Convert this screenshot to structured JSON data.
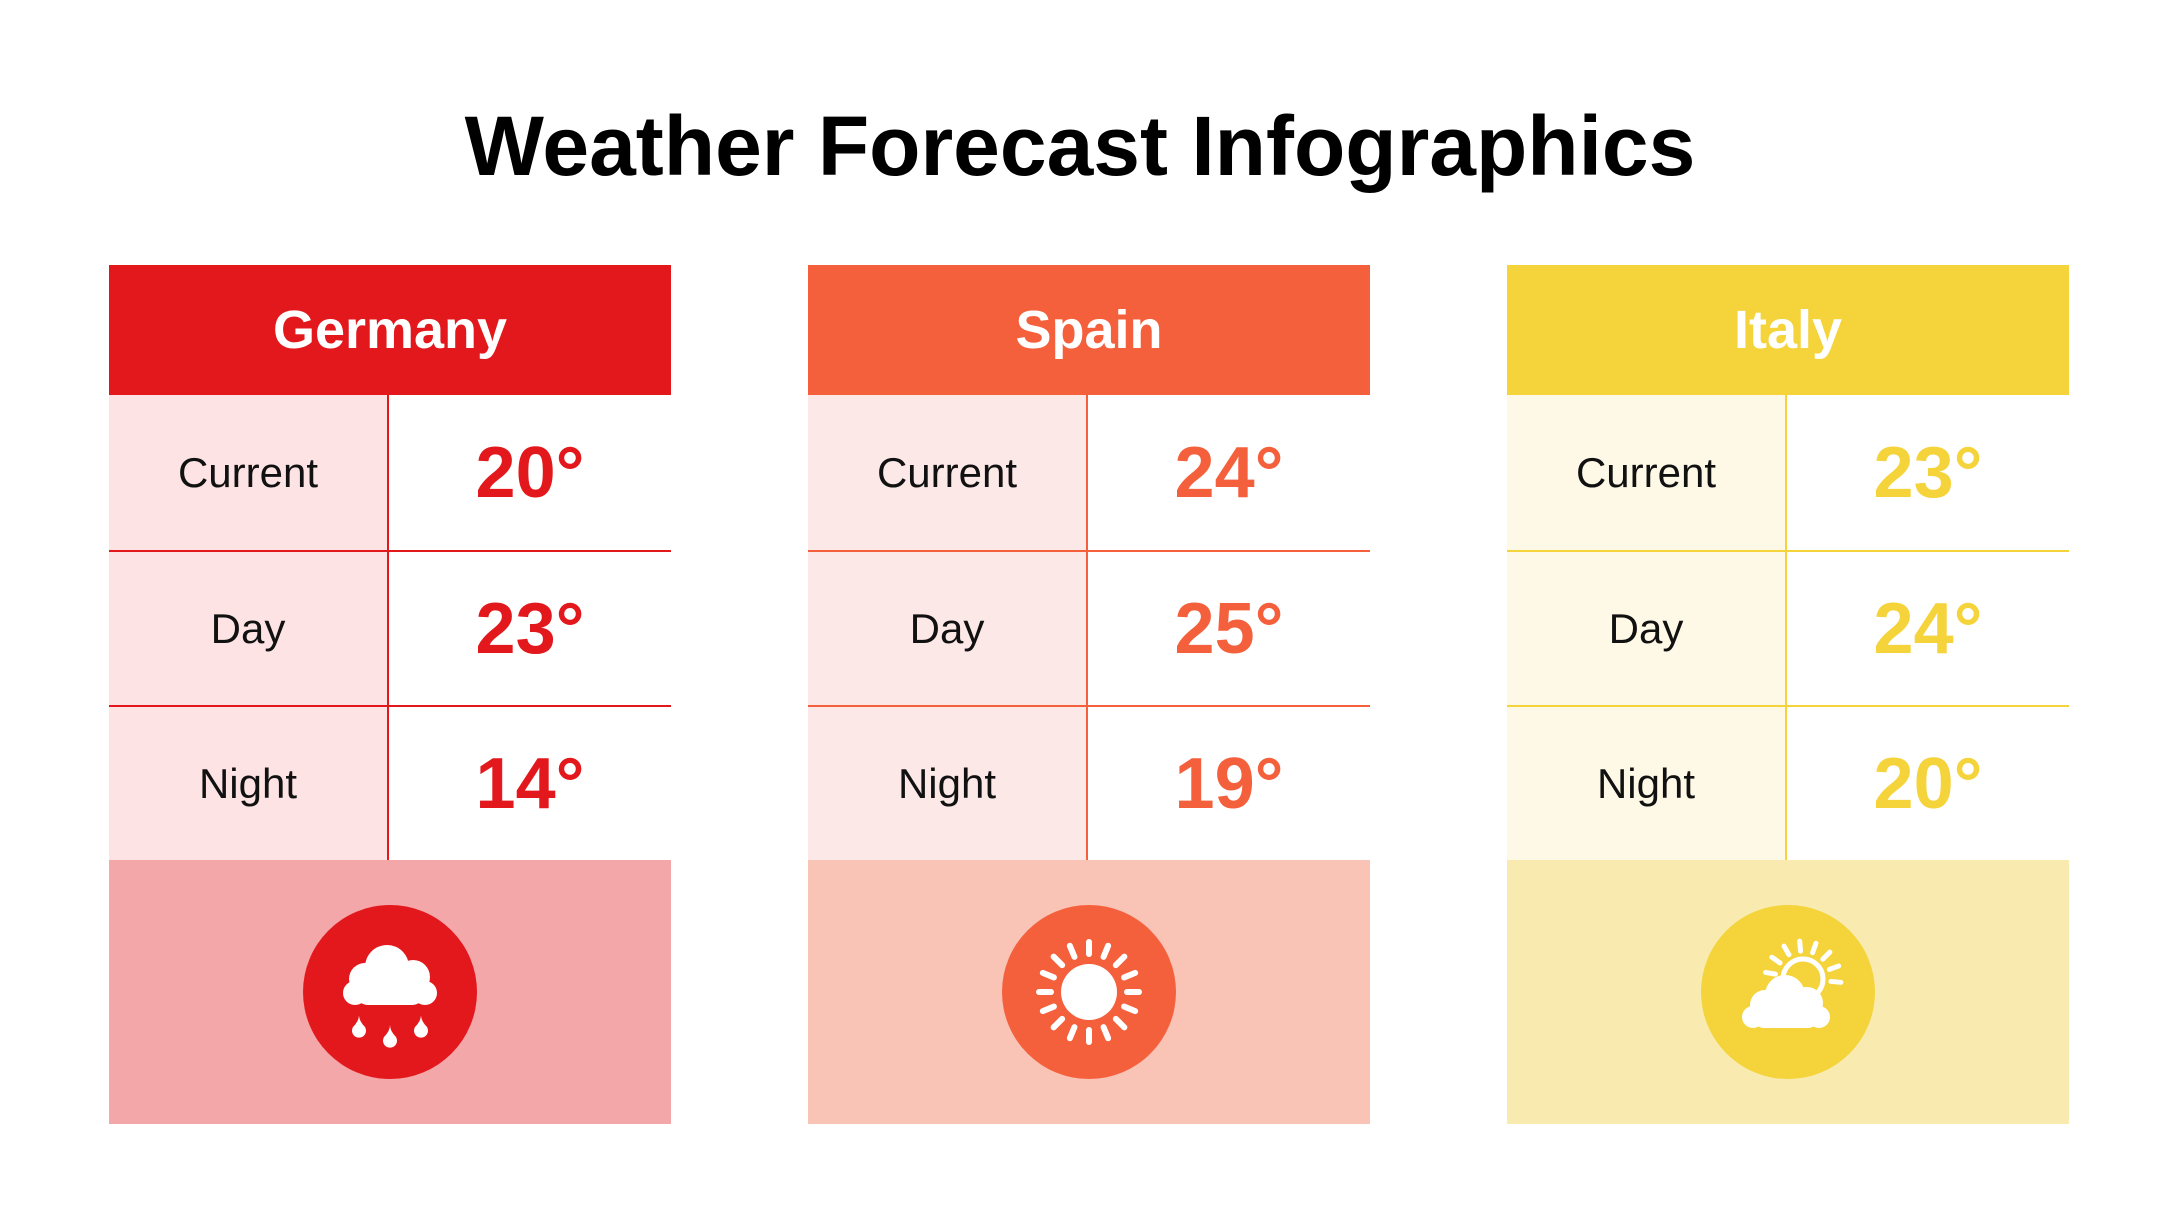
{
  "title": "Weather Forecast Infographics",
  "cards": [
    {
      "country": "Germany",
      "accent": "#e3181d",
      "pale": "#fde3e4",
      "footer": "#f4a7a8",
      "icon": "rain-cloud-icon",
      "rows": [
        {
          "label": "Current",
          "value": "20°"
        },
        {
          "label": "Day",
          "value": "23°"
        },
        {
          "label": "Night",
          "value": "14°"
        }
      ]
    },
    {
      "country": "Spain",
      "accent": "#f5603c",
      "pale": "#fde8e8",
      "footer": "#f9c3b6",
      "icon": "sun-icon",
      "rows": [
        {
          "label": "Current",
          "value": "24°"
        },
        {
          "label": "Day",
          "value": "25°"
        },
        {
          "label": "Night",
          "value": "19°"
        }
      ]
    },
    {
      "country": "Italy",
      "accent": "#f4d33b",
      "pale": "#fef8e6",
      "footer": "#f9ebb0",
      "icon": "partly-cloudy-icon",
      "rows": [
        {
          "label": "Current",
          "value": "23°"
        },
        {
          "label": "Day",
          "value": "24°"
        },
        {
          "label": "Night",
          "value": "20°"
        }
      ]
    }
  ]
}
